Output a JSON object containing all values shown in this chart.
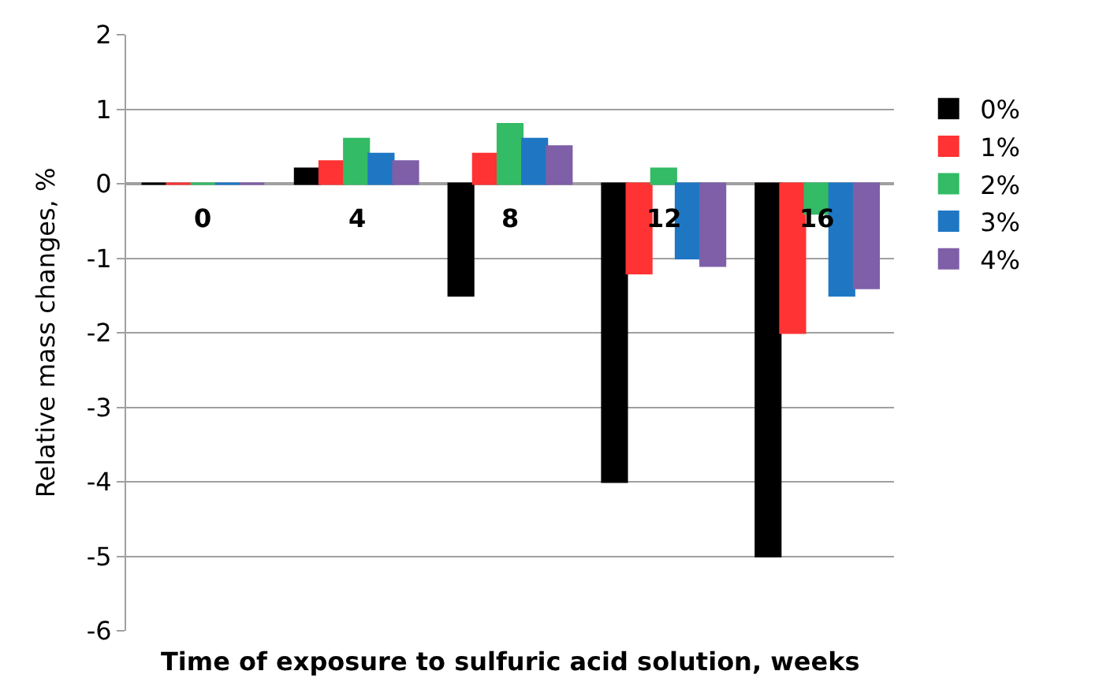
{
  "chart_data": {
    "type": "bar",
    "xlabel": "Time of exposure to sulfuric acid solution, weeks",
    "ylabel": "Relative mass changes, %",
    "categories": [
      "0",
      "4",
      "8",
      "12",
      "16"
    ],
    "series": [
      {
        "name": "0%",
        "color": "#000000",
        "values": [
          0,
          0.2,
          -1.5,
          -4,
          -5
        ]
      },
      {
        "name": "1%",
        "color": "#ff3333",
        "values": [
          0,
          0.3,
          0.4,
          -1.2,
          -2
        ]
      },
      {
        "name": "2%",
        "color": "#33bb66",
        "values": [
          0,
          0.6,
          0.8,
          0.2,
          -0.4
        ]
      },
      {
        "name": "3%",
        "color": "#1f77c4",
        "values": [
          0,
          0.4,
          0.6,
          -1.0,
          -1.5
        ]
      },
      {
        "name": "4%",
        "color": "#7f5fa8",
        "values": [
          0,
          0.3,
          0.5,
          -1.1,
          -1.4
        ]
      }
    ],
    "ylim": [
      -6,
      2
    ],
    "yticks": [
      -6,
      -5,
      -4,
      -3,
      -2,
      -1,
      0,
      1,
      2
    ],
    "grid": "y",
    "legend": "right"
  }
}
